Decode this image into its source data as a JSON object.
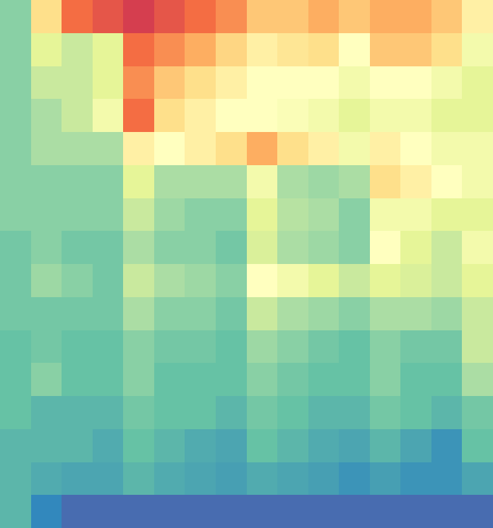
{
  "chart_data": {
    "type": "heatmap",
    "values": [
      [
        0.25,
        0.6,
        0.8,
        0.85,
        0.9,
        0.85,
        0.8,
        0.75,
        0.65,
        0.65,
        0.7,
        0.65,
        0.7,
        0.7,
        0.65,
        0.55
      ],
      [
        0.25,
        0.4,
        0.35,
        0.4,
        0.8,
        0.75,
        0.7,
        0.62,
        0.55,
        0.58,
        0.6,
        0.5,
        0.65,
        0.65,
        0.6,
        0.45
      ],
      [
        0.25,
        0.35,
        0.35,
        0.4,
        0.75,
        0.65,
        0.6,
        0.55,
        0.5,
        0.5,
        0.5,
        0.45,
        0.5,
        0.5,
        0.45,
        0.4
      ],
      [
        0.25,
        0.3,
        0.35,
        0.45,
        0.8,
        0.6,
        0.55,
        0.5,
        0.5,
        0.48,
        0.45,
        0.4,
        0.45,
        0.45,
        0.4,
        0.4
      ],
      [
        0.25,
        0.3,
        0.3,
        0.3,
        0.55,
        0.5,
        0.55,
        0.6,
        0.7,
        0.6,
        0.55,
        0.45,
        0.55,
        0.5,
        0.45,
        0.45
      ],
      [
        0.25,
        0.25,
        0.25,
        0.25,
        0.4,
        0.3,
        0.3,
        0.3,
        0.45,
        0.3,
        0.28,
        0.3,
        0.6,
        0.55,
        0.5,
        0.45
      ],
      [
        0.25,
        0.25,
        0.25,
        0.25,
        0.35,
        0.28,
        0.25,
        0.25,
        0.4,
        0.32,
        0.3,
        0.25,
        0.45,
        0.45,
        0.4,
        0.4
      ],
      [
        0.22,
        0.25,
        0.22,
        0.22,
        0.3,
        0.25,
        0.25,
        0.22,
        0.38,
        0.3,
        0.28,
        0.25,
        0.5,
        0.4,
        0.35,
        0.45
      ],
      [
        0.22,
        0.28,
        0.25,
        0.22,
        0.35,
        0.3,
        0.28,
        0.25,
        0.5,
        0.45,
        0.4,
        0.35,
        0.4,
        0.38,
        0.35,
        0.4
      ],
      [
        0.22,
        0.22,
        0.22,
        0.22,
        0.3,
        0.25,
        0.25,
        0.22,
        0.35,
        0.3,
        0.28,
        0.25,
        0.3,
        0.3,
        0.28,
        0.35
      ],
      [
        0.2,
        0.22,
        0.2,
        0.2,
        0.25,
        0.22,
        0.22,
        0.2,
        0.28,
        0.25,
        0.22,
        0.2,
        0.25,
        0.22,
        0.22,
        0.35
      ],
      [
        0.2,
        0.25,
        0.2,
        0.2,
        0.25,
        0.2,
        0.2,
        0.2,
        0.25,
        0.22,
        0.2,
        0.2,
        0.25,
        0.2,
        0.2,
        0.3
      ],
      [
        0.2,
        0.18,
        0.18,
        0.18,
        0.22,
        0.2,
        0.2,
        0.18,
        0.22,
        0.2,
        0.18,
        0.18,
        0.22,
        0.2,
        0.18,
        0.22
      ],
      [
        0.18,
        0.18,
        0.18,
        0.16,
        0.2,
        0.18,
        0.16,
        0.15,
        0.2,
        0.18,
        0.16,
        0.15,
        0.18,
        0.15,
        0.12,
        0.2
      ],
      [
        0.18,
        0.16,
        0.15,
        0.15,
        0.18,
        0.16,
        0.15,
        0.14,
        0.16,
        0.15,
        0.14,
        0.12,
        0.14,
        0.12,
        0.12,
        0.15
      ],
      [
        0.18,
        0.1,
        0.05,
        0.05,
        0.05,
        0.05,
        0.05,
        0.05,
        0.05,
        0.05,
        0.05,
        0.05,
        0.05,
        0.05,
        0.05,
        0.05
      ]
    ]
  }
}
